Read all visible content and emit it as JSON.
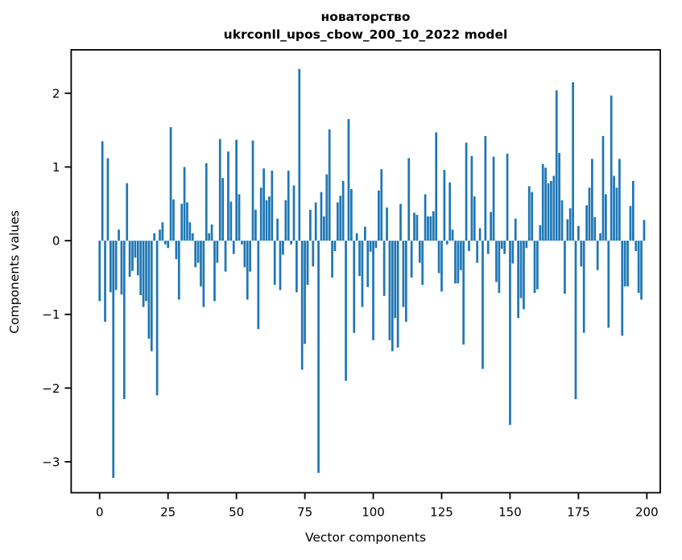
{
  "figure": {
    "background": "#ffffff",
    "text_color": "#000000"
  },
  "chart_data": {
    "type": "bar",
    "title": "новаторство",
    "subtitle": "ukrconll_upos_cbow_200_10_2022 model",
    "xlabel": "Vector components",
    "ylabel": "Components values",
    "bar_color": "#1f77b4",
    "grid": false,
    "legend": "none",
    "xlim": [
      -10.4,
      204.9
    ],
    "ylim": [
      -3.42,
      2.59
    ],
    "xticks": [
      0,
      25,
      50,
      75,
      100,
      125,
      150,
      175,
      200
    ],
    "xtick_labels": [
      "0",
      "25",
      "50",
      "75",
      "100",
      "125",
      "150",
      "175",
      "200"
    ],
    "yticks": [
      2,
      1,
      0,
      -1,
      -2,
      -3
    ],
    "ytick_labels": [
      "2",
      "1",
      "0",
      "−1",
      "−2",
      "−3"
    ],
    "x": [
      0,
      1,
      2,
      3,
      4,
      5,
      6,
      7,
      8,
      9,
      10,
      11,
      12,
      13,
      14,
      15,
      16,
      17,
      18,
      19,
      20,
      21,
      22,
      23,
      24,
      25,
      26,
      27,
      28,
      29,
      30,
      31,
      32,
      33,
      34,
      35,
      36,
      37,
      38,
      39,
      40,
      41,
      42,
      43,
      44,
      45,
      46,
      47,
      48,
      49,
      50,
      51,
      52,
      53,
      54,
      55,
      56,
      57,
      58,
      59,
      60,
      61,
      62,
      63,
      64,
      65,
      66,
      67,
      68,
      69,
      70,
      71,
      72,
      73,
      74,
      75,
      76,
      77,
      78,
      79,
      80,
      81,
      82,
      83,
      84,
      85,
      86,
      87,
      88,
      89,
      90,
      91,
      92,
      93,
      94,
      95,
      96,
      97,
      98,
      99,
      100,
      101,
      102,
      103,
      104,
      105,
      106,
      107,
      108,
      109,
      110,
      111,
      112,
      113,
      114,
      115,
      116,
      117,
      118,
      119,
      120,
      121,
      122,
      123,
      124,
      125,
      126,
      127,
      128,
      129,
      130,
      131,
      132,
      133,
      134,
      135,
      136,
      137,
      138,
      139,
      140,
      141,
      142,
      143,
      144,
      145,
      146,
      147,
      148,
      149,
      150,
      151,
      152,
      153,
      154,
      155,
      156,
      157,
      158,
      159,
      160,
      161,
      162,
      163,
      164,
      165,
      166,
      167,
      168,
      169,
      170,
      171,
      172,
      173,
      174,
      175,
      176,
      177,
      178,
      179,
      180,
      181,
      182,
      183,
      184,
      185,
      186,
      187,
      188,
      189,
      190,
      191,
      192,
      193,
      194,
      195,
      196,
      197,
      198,
      199
    ],
    "values": [
      -0.82,
      1.35,
      -1.1,
      1.12,
      -0.7,
      -3.22,
      -0.67,
      0.15,
      -0.73,
      -2.15,
      0.78,
      -0.49,
      -0.41,
      -0.23,
      -0.47,
      -0.74,
      -0.9,
      -0.82,
      -1.33,
      -1.5,
      0.1,
      -2.1,
      0.15,
      0.25,
      -0.05,
      -0.1,
      1.54,
      0.56,
      -0.25,
      -0.8,
      0.5,
      1.0,
      0.52,
      0.25,
      0.1,
      -0.36,
      -0.3,
      -0.62,
      -0.9,
      1.05,
      0.1,
      0.22,
      -0.82,
      -0.3,
      1.38,
      0.85,
      -0.42,
      1.21,
      0.53,
      -0.18,
      1.37,
      0.63,
      -0.05,
      -0.36,
      -0.8,
      -0.42,
      1.36,
      0.42,
      -1.2,
      0.72,
      0.98,
      0.55,
      0.6,
      0.95,
      -0.6,
      0.3,
      -0.67,
      -0.19,
      0.55,
      0.95,
      -0.05,
      0.75,
      -0.7,
      2.33,
      -1.75,
      -1.4,
      -0.6,
      0.42,
      -0.35,
      0.52,
      -3.15,
      0.66,
      0.33,
      0.9,
      1.51,
      -0.5,
      -0.14,
      0.52,
      0.61,
      0.81,
      -1.9,
      1.65,
      0.7,
      -1.25,
      0.1,
      -0.48,
      -0.9,
      0.19,
      -0.63,
      -0.15,
      -1.35,
      -0.1,
      0.68,
      0.97,
      -0.75,
      0.45,
      -1.35,
      -1.5,
      -1.05,
      -1.45,
      0.5,
      -0.9,
      -1.1,
      1.12,
      -0.5,
      0.38,
      0.35,
      -0.3,
      -0.6,
      0.63,
      0.33,
      0.33,
      0.4,
      1.47,
      -0.44,
      -0.69,
      0.96,
      -0.05,
      0.79,
      0.15,
      -0.58,
      -0.58,
      -0.4,
      -1.41,
      1.33,
      -0.14,
      1.15,
      0.6,
      -0.3,
      0.17,
      -1.74,
      1.42,
      -0.18,
      0.39,
      1.14,
      -0.56,
      -0.71,
      -0.11,
      -0.18,
      1.18,
      -2.5,
      -0.31,
      0.3,
      -1.05,
      -0.78,
      -0.93,
      -0.1,
      0.74,
      0.66,
      -0.71,
      -0.66,
      0.21,
      1.04,
      0.99,
      0.78,
      0.81,
      0.88,
      2.04,
      1.19,
      0.55,
      -0.72,
      0.29,
      0.44,
      2.15,
      -2.15,
      0.2,
      -0.35,
      -1.25,
      0.48,
      0.72,
      1.11,
      0.32,
      -0.4,
      0.1,
      1.42,
      0.63,
      -1.18,
      1.97,
      0.88,
      0.72,
      1.11,
      -1.29,
      -0.62,
      -0.62,
      0.47,
      0.81,
      -0.14,
      -0.71,
      -0.8,
      0.28
    ]
  }
}
